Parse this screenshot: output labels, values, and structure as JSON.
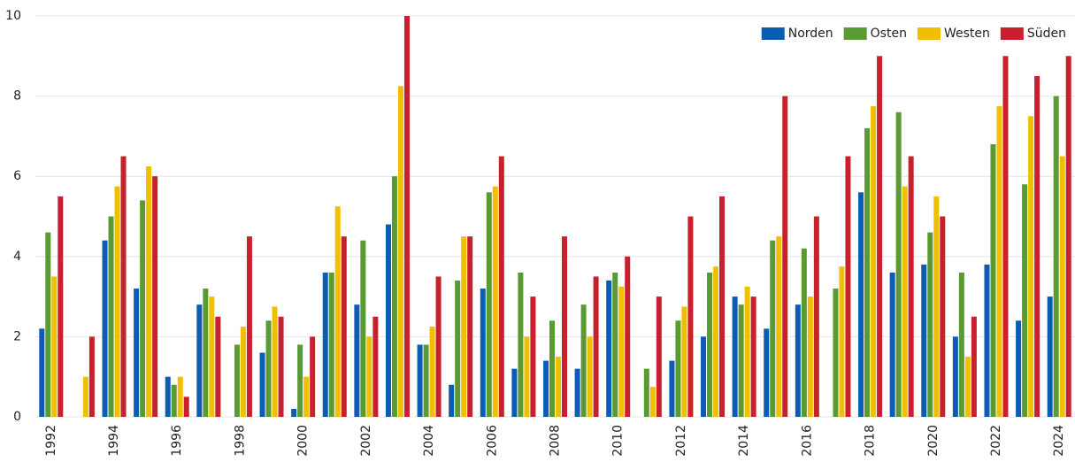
{
  "chart_data": {
    "type": "bar",
    "categories": [
      "1992",
      null,
      "1994",
      null,
      "1996",
      null,
      "1998",
      null,
      "2000",
      null,
      "2002",
      null,
      "2004",
      null,
      "2006",
      null,
      "2008",
      null,
      "2010",
      null,
      "2012",
      null,
      "2014",
      null,
      "2016",
      null,
      "2018",
      null,
      "2020",
      null,
      "2022",
      null,
      "2024"
    ],
    "series": [
      {
        "name": "Norden",
        "color": "#0a5cb4",
        "values": [
          2.2,
          0,
          4.4,
          3.2,
          1.0,
          2.8,
          0,
          1.6,
          0.2,
          3.6,
          2.8,
          4.8,
          1.8,
          0.8,
          3.2,
          1.2,
          1.4,
          1.2,
          3.4,
          0,
          1.4,
          2.0,
          3.0,
          2.2,
          2.8,
          0,
          5.6,
          3.6,
          3.8,
          2.0,
          3.8,
          2.4,
          3.0
        ]
      },
      {
        "name": "Osten",
        "color": "#5a9a32",
        "values": [
          4.6,
          0,
          5.0,
          5.4,
          0.8,
          3.2,
          1.8,
          2.4,
          1.8,
          3.6,
          4.4,
          6.0,
          1.8,
          3.4,
          5.6,
          3.6,
          2.4,
          2.8,
          3.6,
          1.2,
          2.4,
          3.6,
          2.8,
          4.4,
          4.2,
          3.2,
          7.2,
          7.6,
          4.6,
          3.6,
          6.8,
          5.8,
          8.0
        ]
      },
      {
        "name": "Westen",
        "color": "#f0c000",
        "values": [
          3.5,
          1.0,
          5.75,
          6.25,
          1.0,
          3.0,
          2.25,
          2.75,
          1.0,
          5.25,
          2.0,
          8.25,
          2.25,
          4.5,
          5.75,
          2.0,
          1.5,
          2.0,
          3.25,
          0.75,
          2.75,
          3.75,
          3.25,
          4.5,
          3.0,
          3.75,
          7.75,
          5.75,
          5.5,
          1.5,
          7.75,
          7.5,
          6.5
        ]
      },
      {
        "name": "Süden",
        "color": "#c8202c",
        "values": [
          5.5,
          2.0,
          6.5,
          6.0,
          0.5,
          2.5,
          4.5,
          2.5,
          2.0,
          4.5,
          2.5,
          10,
          3.5,
          4.5,
          6.5,
          3.0,
          4.5,
          3.5,
          4.0,
          3.0,
          5.0,
          5.5,
          3.0,
          8.0,
          5.0,
          6.5,
          9.0,
          6.5,
          5.0,
          2.5,
          9.0,
          8.5,
          9.0
        ]
      }
    ],
    "ylim": [
      0,
      10
    ],
    "yticks": [
      0,
      2,
      4,
      6,
      8,
      10
    ],
    "grid": true,
    "legend": "top-right"
  }
}
